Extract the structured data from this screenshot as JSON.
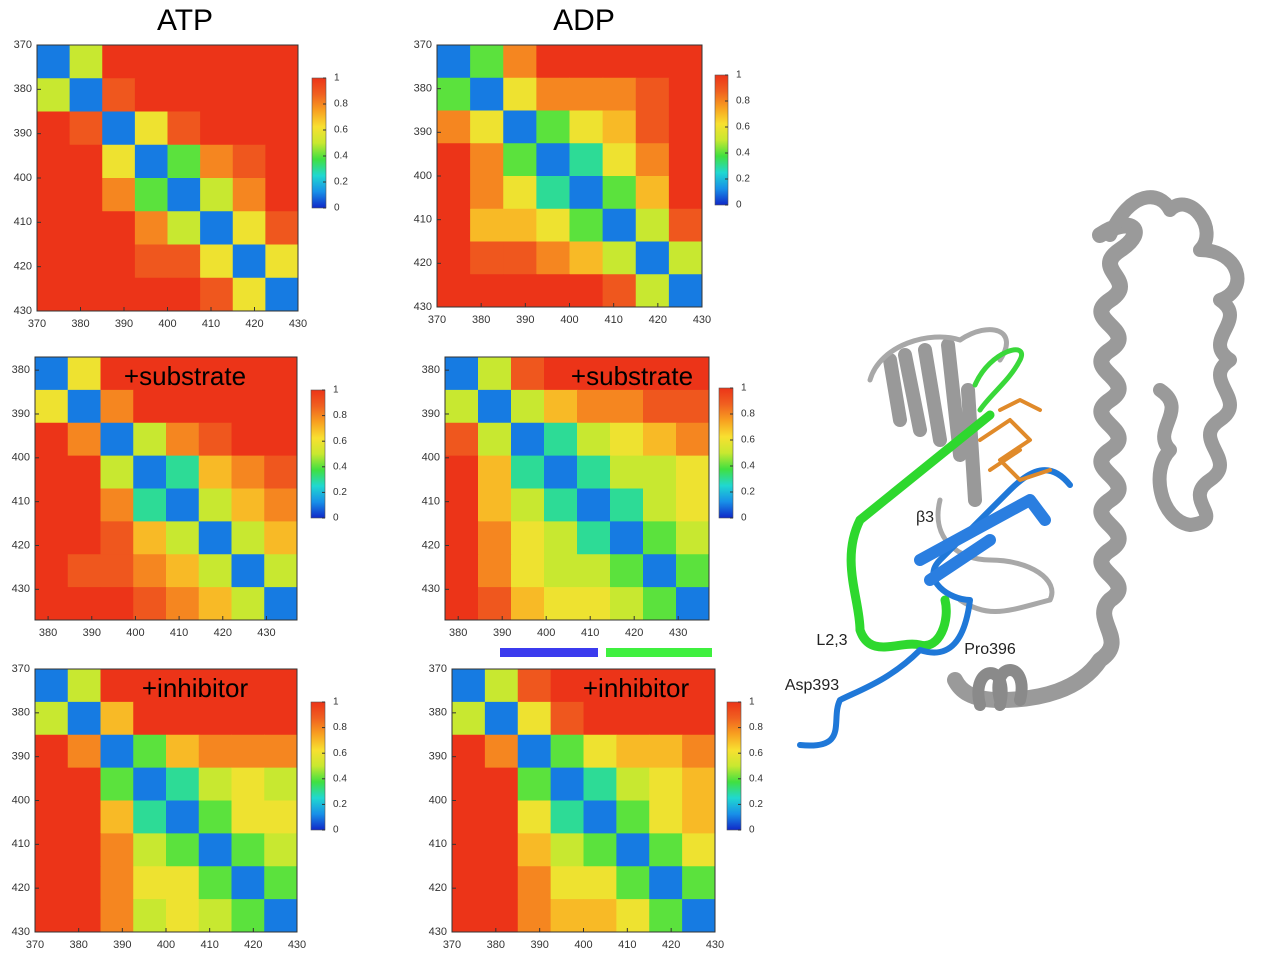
{
  "chart_data": [
    {
      "type": "heatmap",
      "title": "ATP",
      "xlim": [
        370,
        430
      ],
      "ylim": [
        370,
        430
      ],
      "xticks": [
        370,
        380,
        390,
        400,
        410,
        420,
        430
      ],
      "yticks": [
        370,
        380,
        390,
        400,
        410,
        420,
        430
      ],
      "clim": [
        0,
        1
      ],
      "colorbar_ticks": [
        0,
        0.2,
        0.4,
        0.6,
        0.8,
        1
      ],
      "colormap": [
        "#1028c8",
        "#1890e8",
        "#20d8d0",
        "#40e040",
        "#c8e830",
        "#f8e030",
        "#f8a020",
        "#f06020",
        "#ec3418"
      ],
      "values": [
        [
          0.1,
          0.5,
          1,
          1,
          1,
          1,
          1,
          1
        ],
        [
          0.5,
          0.1,
          0.9,
          1,
          1,
          1,
          1,
          1
        ],
        [
          1,
          0.9,
          0.1,
          0.6,
          0.9,
          1,
          1,
          1
        ],
        [
          1,
          1,
          0.6,
          0.1,
          0.4,
          0.8,
          0.9,
          1
        ],
        [
          1,
          1,
          0.8,
          0.4,
          0.1,
          0.5,
          0.8,
          1
        ],
        [
          1,
          1,
          1,
          0.8,
          0.5,
          0.1,
          0.6,
          0.9
        ],
        [
          1,
          1,
          1,
          0.9,
          0.9,
          0.6,
          0.1,
          0.6
        ],
        [
          1,
          1,
          1,
          1,
          1,
          0.9,
          0.6,
          0.1
        ]
      ]
    },
    {
      "type": "heatmap",
      "title": "ADP",
      "xlim": [
        370,
        430
      ],
      "ylim": [
        370,
        430
      ],
      "xticks": [
        370,
        380,
        390,
        400,
        410,
        420,
        430
      ],
      "yticks": [
        370,
        380,
        390,
        400,
        410,
        420,
        430
      ],
      "clim": [
        0,
        1
      ],
      "colorbar_ticks": [
        0,
        0.2,
        0.4,
        0.6,
        0.8,
        1
      ],
      "colormap": [
        "#1028c8",
        "#1890e8",
        "#20d8d0",
        "#40e040",
        "#c8e830",
        "#f8e030",
        "#f8a020",
        "#f06020",
        "#ec3418"
      ],
      "values": [
        [
          0.1,
          0.4,
          0.8,
          1,
          1,
          1,
          1,
          1
        ],
        [
          0.4,
          0.1,
          0.6,
          0.8,
          0.8,
          0.8,
          0.9,
          1
        ],
        [
          0.8,
          0.6,
          0.1,
          0.4,
          0.6,
          0.7,
          0.9,
          1
        ],
        [
          1,
          0.8,
          0.4,
          0.1,
          0.3,
          0.6,
          0.8,
          1
        ],
        [
          1,
          0.8,
          0.6,
          0.3,
          0.1,
          0.4,
          0.7,
          1
        ],
        [
          1,
          0.7,
          0.7,
          0.6,
          0.4,
          0.1,
          0.5,
          0.9
        ],
        [
          1,
          0.9,
          0.9,
          0.8,
          0.7,
          0.5,
          0.1,
          0.5
        ],
        [
          1,
          1,
          1,
          1,
          1,
          0.9,
          0.5,
          0.1
        ]
      ]
    },
    {
      "type": "heatmap",
      "annotation": "+substrate",
      "xlim": [
        377,
        437
      ],
      "ylim": [
        377,
        437
      ],
      "xticks": [
        380,
        390,
        400,
        410,
        420,
        430
      ],
      "yticks": [
        380,
        390,
        400,
        410,
        420,
        430
      ],
      "clim": [
        0,
        1
      ],
      "colorbar_ticks": [
        0,
        0.2,
        0.4,
        0.6,
        0.8,
        1
      ],
      "colormap": [
        "#1028c8",
        "#1890e8",
        "#20d8d0",
        "#40e040",
        "#c8e830",
        "#f8e030",
        "#f8a020",
        "#f06020",
        "#ec3418"
      ],
      "values": [
        [
          0.1,
          0.6,
          1,
          1,
          1,
          1,
          1,
          1
        ],
        [
          0.6,
          0.1,
          0.8,
          1,
          1,
          1,
          1,
          1
        ],
        [
          1,
          0.8,
          0.1,
          0.5,
          0.8,
          0.9,
          1,
          1
        ],
        [
          1,
          1,
          0.5,
          0.1,
          0.3,
          0.7,
          0.8,
          0.9
        ],
        [
          1,
          1,
          0.8,
          0.3,
          0.1,
          0.5,
          0.7,
          0.8
        ],
        [
          1,
          1,
          0.9,
          0.7,
          0.5,
          0.1,
          0.5,
          0.7
        ],
        [
          1,
          0.9,
          0.9,
          0.8,
          0.7,
          0.5,
          0.1,
          0.5
        ],
        [
          1,
          1,
          1,
          0.9,
          0.8,
          0.7,
          0.5,
          0.1
        ]
      ]
    },
    {
      "type": "heatmap",
      "annotation": "+substrate",
      "xlim": [
        377,
        437
      ],
      "ylim": [
        377,
        437
      ],
      "xticks": [
        380,
        390,
        400,
        410,
        420,
        430
      ],
      "yticks": [
        380,
        390,
        400,
        410,
        420,
        430
      ],
      "clim": [
        0,
        1
      ],
      "colorbar_ticks": [
        0,
        0.2,
        0.4,
        0.6,
        0.8,
        1
      ],
      "colormap": [
        "#1028c8",
        "#1890e8",
        "#20d8d0",
        "#40e040",
        "#c8e830",
        "#f8e030",
        "#f8a020",
        "#f06020",
        "#ec3418"
      ],
      "values": [
        [
          0.1,
          0.5,
          0.9,
          1,
          1,
          1,
          1,
          1
        ],
        [
          0.5,
          0.1,
          0.5,
          0.7,
          0.8,
          0.8,
          0.9,
          0.9
        ],
        [
          0.9,
          0.5,
          0.1,
          0.3,
          0.5,
          0.6,
          0.7,
          0.8
        ],
        [
          1,
          0.7,
          0.3,
          0.1,
          0.3,
          0.5,
          0.5,
          0.6
        ],
        [
          1,
          0.7,
          0.5,
          0.3,
          0.1,
          0.3,
          0.5,
          0.6
        ],
        [
          1,
          0.8,
          0.6,
          0.5,
          0.3,
          0.1,
          0.4,
          0.5
        ],
        [
          1,
          0.8,
          0.6,
          0.5,
          0.5,
          0.4,
          0.1,
          0.4
        ],
        [
          1,
          0.9,
          0.7,
          0.6,
          0.6,
          0.5,
          0.4,
          0.1
        ]
      ]
    },
    {
      "type": "heatmap",
      "annotation": "+inhibitor",
      "xlim": [
        370,
        430
      ],
      "ylim": [
        370,
        430
      ],
      "xticks": [
        370,
        380,
        390,
        400,
        410,
        420,
        430
      ],
      "yticks": [
        370,
        380,
        390,
        400,
        410,
        420,
        430
      ],
      "clim": [
        0,
        1
      ],
      "colorbar_ticks": [
        0,
        0.2,
        0.4,
        0.6,
        0.8,
        1
      ],
      "colormap": [
        "#1028c8",
        "#1890e8",
        "#20d8d0",
        "#40e040",
        "#c8e830",
        "#f8e030",
        "#f8a020",
        "#f06020",
        "#ec3418"
      ],
      "values": [
        [
          0.1,
          0.5,
          1,
          1,
          1,
          1,
          1,
          1
        ],
        [
          0.5,
          0.1,
          0.7,
          1,
          1,
          1,
          1,
          1
        ],
        [
          1,
          0.8,
          0.1,
          0.4,
          0.7,
          0.8,
          0.8,
          0.8
        ],
        [
          1,
          1,
          0.4,
          0.1,
          0.3,
          0.5,
          0.6,
          0.5
        ],
        [
          1,
          1,
          0.7,
          0.3,
          0.1,
          0.4,
          0.6,
          0.6
        ],
        [
          1,
          1,
          0.8,
          0.5,
          0.4,
          0.1,
          0.4,
          0.5
        ],
        [
          1,
          1,
          0.8,
          0.6,
          0.6,
          0.4,
          0.1,
          0.4
        ],
        [
          1,
          1,
          0.8,
          0.5,
          0.6,
          0.5,
          0.4,
          0.1
        ]
      ]
    },
    {
      "type": "heatmap",
      "annotation": "+inhibitor",
      "xlim": [
        370,
        430
      ],
      "ylim": [
        370,
        430
      ],
      "xticks": [
        370,
        380,
        390,
        400,
        410,
        420,
        430
      ],
      "yticks": [
        370,
        380,
        390,
        400,
        410,
        420,
        430
      ],
      "clim": [
        0,
        1
      ],
      "colorbar_ticks": [
        0,
        0.2,
        0.4,
        0.6,
        0.8,
        1
      ],
      "colormap": [
        "#1028c8",
        "#1890e8",
        "#20d8d0",
        "#40e040",
        "#c8e830",
        "#f8e030",
        "#f8a020",
        "#f06020",
        "#ec3418"
      ],
      "values": [
        [
          0.1,
          0.5,
          0.9,
          1,
          1,
          1,
          1,
          1
        ],
        [
          0.5,
          0.1,
          0.6,
          0.9,
          1,
          1,
          1,
          1
        ],
        [
          1,
          0.8,
          0.1,
          0.4,
          0.6,
          0.7,
          0.7,
          0.8
        ],
        [
          1,
          1,
          0.4,
          0.1,
          0.3,
          0.5,
          0.6,
          0.7
        ],
        [
          1,
          1,
          0.6,
          0.3,
          0.1,
          0.4,
          0.6,
          0.7
        ],
        [
          1,
          1,
          0.7,
          0.5,
          0.4,
          0.1,
          0.4,
          0.6
        ],
        [
          1,
          1,
          0.8,
          0.6,
          0.6,
          0.4,
          0.1,
          0.4
        ],
        [
          1,
          1,
          0.8,
          0.7,
          0.7,
          0.6,
          0.4,
          0.1
        ]
      ]
    }
  ],
  "structure_labels": [
    "β3",
    "L2,3",
    "Pro396",
    "Asp393"
  ]
}
